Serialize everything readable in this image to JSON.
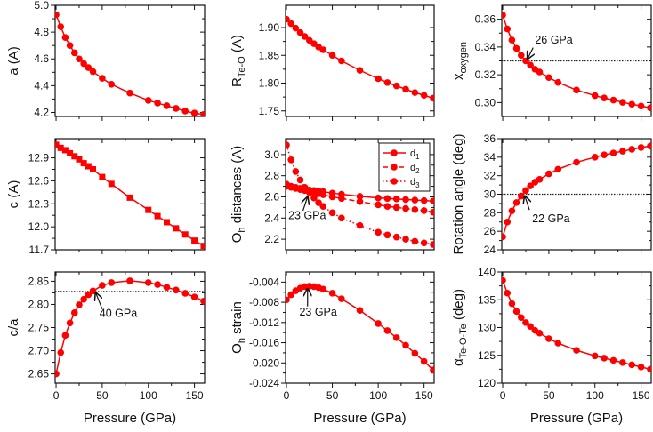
{
  "chart_data": [
    {
      "type": "line",
      "ylabel": {
        "main": "a (A)",
        "sub": "",
        "tail": ""
      },
      "xlabel": "",
      "xlim": [
        -1,
        161
      ],
      "ylim": [
        4.17,
        5.0
      ],
      "yticks": [
        "4.2",
        "4.4",
        "4.6",
        "4.8",
        "5.0"
      ],
      "xticks": [
        "0",
        "50",
        "100",
        "150"
      ],
      "show_xticklabels": false,
      "x": [
        0,
        5,
        10,
        15,
        20,
        25,
        30,
        35,
        40,
        50,
        60,
        80,
        100,
        110,
        120,
        130,
        140,
        150,
        160
      ],
      "series": [
        {
          "name": "a",
          "marker": "circle",
          "dash": "solid",
          "values": [
            4.93,
            4.84,
            4.76,
            4.7,
            4.645,
            4.6,
            4.565,
            4.535,
            4.505,
            4.455,
            4.41,
            4.345,
            4.29,
            4.27,
            4.25,
            4.23,
            4.21,
            4.195,
            4.185
          ]
        }
      ],
      "reference_line": null,
      "annotations": []
    },
    {
      "type": "line",
      "ylabel": {
        "main": "R",
        "sub": "Te-O",
        "tail": " (A)"
      },
      "xlabel": "",
      "xlim": [
        -1,
        161
      ],
      "ylim": [
        1.74,
        1.94
      ],
      "yticks": [
        "1.75",
        "1.80",
        "1.85",
        "1.90"
      ],
      "xticks": [
        "0",
        "50",
        "100",
        "150"
      ],
      "show_xticklabels": false,
      "x": [
        0,
        5,
        10,
        15,
        20,
        25,
        30,
        35,
        40,
        50,
        60,
        80,
        100,
        110,
        120,
        130,
        140,
        150,
        160
      ],
      "series": [
        {
          "name": "R_Te-O",
          "marker": "circle",
          "dash": "solid",
          "values": [
            1.915,
            1.907,
            1.899,
            1.891,
            1.884,
            1.877,
            1.871,
            1.865,
            1.86,
            1.85,
            1.84,
            1.823,
            1.808,
            1.801,
            1.795,
            1.789,
            1.783,
            1.778,
            1.773
          ]
        }
      ],
      "reference_line": null,
      "annotations": []
    },
    {
      "type": "line",
      "ylabel": {
        "main": "x",
        "sub": "oxygen",
        "tail": ""
      },
      "xlabel": "",
      "xlim": [
        -1,
        161
      ],
      "ylim": [
        0.29,
        0.37
      ],
      "yticks": [
        "0.30",
        "0.32",
        "0.34",
        "0.36"
      ],
      "xticks": [
        "0",
        "50",
        "100",
        "150"
      ],
      "show_xticklabels": false,
      "x": [
        0,
        5,
        10,
        15,
        20,
        25,
        30,
        35,
        40,
        50,
        60,
        80,
        100,
        110,
        120,
        130,
        140,
        150,
        160
      ],
      "series": [
        {
          "name": "x_oxygen",
          "marker": "circle",
          "dash": "solid",
          "values": [
            0.363,
            0.353,
            0.345,
            0.339,
            0.334,
            0.33,
            0.327,
            0.324,
            0.322,
            0.318,
            0.3145,
            0.309,
            0.305,
            0.3033,
            0.3018,
            0.3002,
            0.2988,
            0.2975,
            0.2962
          ]
        }
      ],
      "reference_line": 0.33,
      "annotations": [
        {
          "text": "26 GPa",
          "text_at": [
            35,
            0.3425
          ],
          "arrow_from": [
            33,
            0.3395
          ],
          "arrow_to": [
            27,
            0.3315
          ]
        }
      ]
    },
    {
      "type": "line",
      "ylabel": {
        "main": "c (A)",
        "sub": "",
        "tail": ""
      },
      "xlabel": "",
      "xlim": [
        -1,
        161
      ],
      "ylim": [
        11.7,
        13.15
      ],
      "yticks": [
        "11.7",
        "12.0",
        "12.3",
        "12.6",
        "12.9"
      ],
      "xticks": [
        "0",
        "50",
        "100",
        "150"
      ],
      "show_xticklabels": false,
      "x": [
        0,
        5,
        10,
        15,
        20,
        25,
        30,
        35,
        40,
        50,
        60,
        80,
        100,
        110,
        120,
        130,
        140,
        150,
        160
      ],
      "series": [
        {
          "name": "c",
          "marker": "square",
          "dash": "solid",
          "values": [
            13.07,
            13.03,
            13.0,
            12.96,
            12.92,
            12.88,
            12.83,
            12.79,
            12.75,
            12.65,
            12.56,
            12.38,
            12.22,
            12.14,
            12.06,
            11.98,
            11.9,
            11.82,
            11.75
          ]
        }
      ],
      "reference_line": null,
      "annotations": []
    },
    {
      "type": "line",
      "ylabel": {
        "main": "O",
        "sub": "h",
        "tail": " distances (A)"
      },
      "xlabel": "",
      "xlim": [
        -1,
        161
      ],
      "ylim": [
        2.1,
        3.15
      ],
      "yticks": [
        "2.2",
        "2.4",
        "2.6",
        "2.8",
        "3.0"
      ],
      "xticks": [
        "0",
        "50",
        "100",
        "150"
      ],
      "show_xticklabels": false,
      "x": [
        0,
        5,
        10,
        15,
        20,
        25,
        30,
        35,
        40,
        50,
        60,
        80,
        100,
        110,
        120,
        130,
        140,
        150,
        160
      ],
      "series": [
        {
          "name": "d",
          "sub": "1",
          "marker": "circle",
          "dash": "solid",
          "values": [
            2.72,
            2.7,
            2.69,
            2.68,
            2.67,
            2.665,
            2.66,
            2.655,
            2.65,
            2.635,
            2.625,
            2.605,
            2.59,
            2.585,
            2.58,
            2.575,
            2.57,
            2.565,
            2.56
          ]
        },
        {
          "name": "d",
          "sub": "2",
          "marker": "circle",
          "dash": "dashed",
          "values": [
            2.7,
            2.69,
            2.68,
            2.67,
            2.66,
            2.65,
            2.64,
            2.63,
            2.62,
            2.6,
            2.585,
            2.555,
            2.525,
            2.51,
            2.5,
            2.49,
            2.48,
            2.47,
            2.455
          ]
        },
        {
          "name": "d",
          "sub": "3",
          "marker": "circle",
          "dash": "dotted",
          "values": [
            3.09,
            2.95,
            2.84,
            2.76,
            2.69,
            2.64,
            2.59,
            2.545,
            2.51,
            2.45,
            2.4,
            2.33,
            2.265,
            2.24,
            2.22,
            2.2,
            2.18,
            2.165,
            2.15
          ]
        }
      ],
      "legend": "top-right",
      "reference_line": null,
      "annotations": [
        {
          "text": "23 GPa",
          "text_at": [
            2,
            2.39
          ],
          "arrow_from": [
            18,
            2.47
          ],
          "arrow_to": [
            23,
            2.6
          ]
        }
      ]
    },
    {
      "type": "line",
      "ylabel": {
        "main": "Rotation angle (deg)",
        "sub": "",
        "tail": ""
      },
      "xlabel": "",
      "xlim": [
        -1,
        161
      ],
      "ylim": [
        24,
        36
      ],
      "yticks": [
        "24",
        "26",
        "28",
        "30",
        "32",
        "34",
        "36"
      ],
      "xticks": [
        "0",
        "50",
        "100",
        "150"
      ],
      "show_xticklabels": false,
      "x": [
        0,
        5,
        10,
        15,
        20,
        25,
        30,
        35,
        40,
        50,
        60,
        80,
        100,
        110,
        120,
        130,
        140,
        150,
        160
      ],
      "series": [
        {
          "name": "rotation angle",
          "marker": "circle",
          "dash": "solid",
          "values": [
            25.4,
            27.0,
            28.2,
            29.1,
            29.8,
            30.4,
            30.9,
            31.3,
            31.6,
            32.2,
            32.7,
            33.45,
            34.0,
            34.25,
            34.45,
            34.65,
            34.85,
            35.05,
            35.2
          ]
        }
      ],
      "reference_line": 30,
      "annotations": [
        {
          "text": "22 GPa",
          "text_at": [
            32,
            27.0
          ],
          "arrow_from": [
            29,
            28.3
          ],
          "arrow_to": [
            24,
            29.8
          ]
        }
      ]
    },
    {
      "type": "line",
      "ylabel": {
        "main": "c/a",
        "sub": "",
        "tail": ""
      },
      "xlabel": "Pressure (GPa)",
      "xlim": [
        -1,
        161
      ],
      "ylim": [
        2.63,
        2.87
      ],
      "yticks": [
        "2.65",
        "2.70",
        "2.75",
        "2.80",
        "2.85"
      ],
      "xticks": [
        "0",
        "50",
        "100",
        "150"
      ],
      "show_xticklabels": true,
      "x": [
        0,
        5,
        10,
        15,
        20,
        25,
        30,
        35,
        40,
        50,
        60,
        80,
        100,
        110,
        120,
        130,
        140,
        150,
        160
      ],
      "series": [
        {
          "name": "c/a",
          "marker": "circle",
          "dash": "solid",
          "values": [
            2.65,
            2.696,
            2.733,
            2.76,
            2.782,
            2.799,
            2.811,
            2.821,
            2.829,
            2.841,
            2.847,
            2.851,
            2.847,
            2.843,
            2.837,
            2.831,
            2.824,
            2.816,
            2.807
          ]
        }
      ],
      "reference_line": 2.828,
      "annotations": [
        {
          "text": "40 GPa",
          "text_at": [
            47,
            2.773
          ],
          "arrow_from": [
            50,
            2.79
          ],
          "arrow_to": [
            43,
            2.825
          ]
        }
      ]
    },
    {
      "type": "line",
      "ylabel": {
        "main": "O",
        "sub": "h",
        "tail": " strain"
      },
      "xlabel": "Pressure (GPa)",
      "xlim": [
        -1,
        161
      ],
      "ylim": [
        -0.024,
        -0.002
      ],
      "yticks": [
        "-0.024",
        "-0.020",
        "-0.016",
        "-0.012",
        "-0.008",
        "-0.004"
      ],
      "xticks": [
        "0",
        "50",
        "100",
        "150"
      ],
      "show_xticklabels": true,
      "x": [
        0,
        5,
        10,
        15,
        20,
        25,
        30,
        35,
        40,
        50,
        60,
        80,
        100,
        110,
        120,
        130,
        140,
        150,
        160
      ],
      "series": [
        {
          "name": "O_h strain",
          "marker": "circle",
          "dash": "solid",
          "values": [
            -0.0075,
            -0.0065,
            -0.0057,
            -0.0052,
            -0.0049,
            -0.0048,
            -0.0049,
            -0.0051,
            -0.0054,
            -0.0062,
            -0.0073,
            -0.0096,
            -0.0122,
            -0.0136,
            -0.015,
            -0.0165,
            -0.0181,
            -0.0197,
            -0.0214
          ]
        }
      ],
      "reference_line": null,
      "annotations": [
        {
          "text": "23 GPa",
          "text_at": [
            14,
            -0.0106
          ],
          "arrow_from": [
            23,
            -0.0088
          ],
          "arrow_to": [
            23,
            -0.0053
          ]
        }
      ]
    },
    {
      "type": "line",
      "ylabel": {
        "main": "α",
        "sub": "Te-O-Te",
        "tail": " (deg)"
      },
      "xlabel": "Pressure (GPa)",
      "xlim": [
        -1,
        161
      ],
      "ylim": [
        120,
        140
      ],
      "yticks": [
        "120",
        "125",
        "130",
        "135",
        "140"
      ],
      "xticks": [
        "0",
        "50",
        "100",
        "150"
      ],
      "show_xticklabels": true,
      "x": [
        0,
        5,
        10,
        15,
        20,
        25,
        30,
        35,
        40,
        50,
        60,
        80,
        100,
        110,
        120,
        130,
        140,
        150,
        160
      ],
      "series": [
        {
          "name": "alpha Te-O-Te",
          "marker": "circle",
          "dash": "solid",
          "values": [
            138.5,
            136.2,
            134.3,
            132.9,
            131.8,
            130.9,
            130.2,
            129.5,
            129.0,
            128.0,
            127.2,
            125.9,
            124.9,
            124.5,
            124.1,
            123.7,
            123.3,
            122.9,
            122.5
          ]
        }
      ],
      "reference_line": null,
      "annotations": []
    }
  ],
  "colors": {
    "series": "#ff0000",
    "axis": "#111111",
    "reference": "#222222"
  }
}
